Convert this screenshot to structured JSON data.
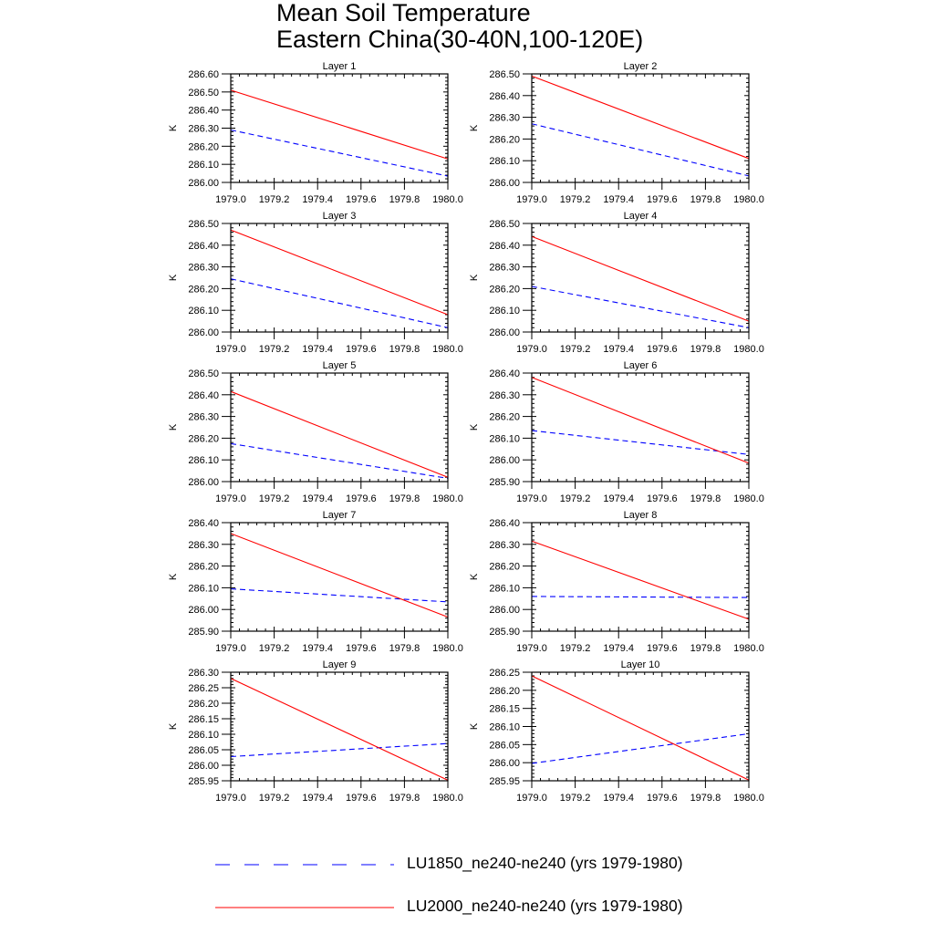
{
  "title": {
    "line1": "Mean Soil Temperature",
    "line2": "Eastern China(30-40N,100-120E)"
  },
  "legend": [
    {
      "label": "LU1850_ne240-ne240 (yrs 1979-1980)",
      "color": "#0000ff",
      "style": "dashed"
    },
    {
      "label": "LU2000_ne240-ne240 (yrs 1979-1980)",
      "color": "#ff0000",
      "style": "solid"
    }
  ],
  "chart_data": [
    {
      "type": "line",
      "title": "Layer 1",
      "ylabel": "K",
      "xlim": [
        1979.0,
        1980.0
      ],
      "xticks": [
        "1979.0",
        "1979.2",
        "1979.4",
        "1979.6",
        "1979.8",
        "1980.0"
      ],
      "ylim": [
        286.0,
        286.6
      ],
      "yticks": [
        "286.00",
        "286.10",
        "286.20",
        "286.30",
        "286.40",
        "286.50",
        "286.60"
      ],
      "series": [
        {
          "name": "LU1850_ne240-ne240 (yrs 1979-1980)",
          "x": [
            1979.0,
            1980.0
          ],
          "y": [
            286.29,
            286.035
          ]
        },
        {
          "name": "LU2000_ne240-ne240 (yrs 1979-1980)",
          "x": [
            1979.0,
            1980.0
          ],
          "y": [
            286.51,
            286.13
          ]
        }
      ]
    },
    {
      "type": "line",
      "title": "Layer 2",
      "ylabel": "K",
      "xlim": [
        1979.0,
        1980.0
      ],
      "xticks": [
        "1979.0",
        "1979.2",
        "1979.4",
        "1979.6",
        "1979.8",
        "1980.0"
      ],
      "ylim": [
        286.0,
        286.5
      ],
      "yticks": [
        "286.00",
        "286.10",
        "286.20",
        "286.30",
        "286.40",
        "286.50"
      ],
      "series": [
        {
          "name": "LU1850_ne240-ne240 (yrs 1979-1980)",
          "x": [
            1979.0,
            1980.0
          ],
          "y": [
            286.27,
            286.03
          ]
        },
        {
          "name": "LU2000_ne240-ne240 (yrs 1979-1980)",
          "x": [
            1979.0,
            1980.0
          ],
          "y": [
            286.49,
            286.11
          ]
        }
      ]
    },
    {
      "type": "line",
      "title": "Layer 3",
      "ylabel": "K",
      "xlim": [
        1979.0,
        1980.0
      ],
      "xticks": [
        "1979.0",
        "1979.2",
        "1979.4",
        "1979.6",
        "1979.8",
        "1980.0"
      ],
      "ylim": [
        286.0,
        286.5
      ],
      "yticks": [
        "286.00",
        "286.10",
        "286.20",
        "286.30",
        "286.40",
        "286.50"
      ],
      "series": [
        {
          "name": "LU1850_ne240-ne240 (yrs 1979-1980)",
          "x": [
            1979.0,
            1980.0
          ],
          "y": [
            286.245,
            286.02
          ]
        },
        {
          "name": "LU2000_ne240-ne240 (yrs 1979-1980)",
          "x": [
            1979.0,
            1980.0
          ],
          "y": [
            286.47,
            286.08
          ]
        }
      ]
    },
    {
      "type": "line",
      "title": "Layer 4",
      "ylabel": "K",
      "xlim": [
        1979.0,
        1980.0
      ],
      "xticks": [
        "1979.0",
        "1979.2",
        "1979.4",
        "1979.6",
        "1979.8",
        "1980.0"
      ],
      "ylim": [
        286.0,
        286.5
      ],
      "yticks": [
        "286.00",
        "286.10",
        "286.20",
        "286.30",
        "286.40",
        "286.50"
      ],
      "series": [
        {
          "name": "LU1850_ne240-ne240 (yrs 1979-1980)",
          "x": [
            1979.0,
            1980.0
          ],
          "y": [
            286.21,
            286.02
          ]
        },
        {
          "name": "LU2000_ne240-ne240 (yrs 1979-1980)",
          "x": [
            1979.0,
            1980.0
          ],
          "y": [
            286.44,
            286.05
          ]
        }
      ]
    },
    {
      "type": "line",
      "title": "Layer 5",
      "ylabel": "K",
      "xlim": [
        1979.0,
        1980.0
      ],
      "xticks": [
        "1979.0",
        "1979.2",
        "1979.4",
        "1979.6",
        "1979.8",
        "1980.0"
      ],
      "ylim": [
        286.0,
        286.5
      ],
      "yticks": [
        "286.00",
        "286.10",
        "286.20",
        "286.30",
        "286.40",
        "286.50"
      ],
      "series": [
        {
          "name": "LU1850_ne240-ne240 (yrs 1979-1980)",
          "x": [
            1979.0,
            1980.0
          ],
          "y": [
            286.175,
            286.015
          ]
        },
        {
          "name": "LU2000_ne240-ne240 (yrs 1979-1980)",
          "x": [
            1979.0,
            1980.0
          ],
          "y": [
            286.415,
            286.02
          ]
        }
      ]
    },
    {
      "type": "line",
      "title": "Layer 6",
      "ylabel": "K",
      "xlim": [
        1979.0,
        1980.0
      ],
      "xticks": [
        "1979.0",
        "1979.2",
        "1979.4",
        "1979.6",
        "1979.8",
        "1980.0"
      ],
      "ylim": [
        285.9,
        286.4
      ],
      "yticks": [
        "285.90",
        "286.00",
        "286.10",
        "286.20",
        "286.30",
        "286.40"
      ],
      "series": [
        {
          "name": "LU1850_ne240-ne240 (yrs 1979-1980)",
          "x": [
            1979.0,
            1980.0
          ],
          "y": [
            286.135,
            286.025
          ]
        },
        {
          "name": "LU2000_ne240-ne240 (yrs 1979-1980)",
          "x": [
            1979.0,
            1980.0
          ],
          "y": [
            286.38,
            285.985
          ]
        }
      ]
    },
    {
      "type": "line",
      "title": "Layer 7",
      "ylabel": "K",
      "xlim": [
        1979.0,
        1980.0
      ],
      "xticks": [
        "1979.0",
        "1979.2",
        "1979.4",
        "1979.6",
        "1979.8",
        "1980.0"
      ],
      "ylim": [
        285.9,
        286.4
      ],
      "yticks": [
        "285.90",
        "286.00",
        "286.10",
        "286.20",
        "286.30",
        "286.40"
      ],
      "series": [
        {
          "name": "LU1850_ne240-ne240 (yrs 1979-1980)",
          "x": [
            1979.0,
            1980.0
          ],
          "y": [
            286.095,
            286.035
          ]
        },
        {
          "name": "LU2000_ne240-ne240 (yrs 1979-1980)",
          "x": [
            1979.0,
            1980.0
          ],
          "y": [
            286.35,
            285.965
          ]
        }
      ]
    },
    {
      "type": "line",
      "title": "Layer 8",
      "ylabel": "K",
      "xlim": [
        1979.0,
        1980.0
      ],
      "xticks": [
        "1979.0",
        "1979.2",
        "1979.4",
        "1979.6",
        "1979.8",
        "1980.0"
      ],
      "ylim": [
        285.9,
        286.4
      ],
      "yticks": [
        "285.90",
        "286.00",
        "286.10",
        "286.20",
        "286.30",
        "286.40"
      ],
      "series": [
        {
          "name": "LU1850_ne240-ne240 (yrs 1979-1980)",
          "x": [
            1979.0,
            1980.0
          ],
          "y": [
            286.06,
            286.055
          ]
        },
        {
          "name": "LU2000_ne240-ne240 (yrs 1979-1980)",
          "x": [
            1979.0,
            1980.0
          ],
          "y": [
            286.315,
            285.955
          ]
        }
      ]
    },
    {
      "type": "line",
      "title": "Layer 9",
      "ylabel": "K",
      "xlim": [
        1979.0,
        1980.0
      ],
      "xticks": [
        "1979.0",
        "1979.2",
        "1979.4",
        "1979.6",
        "1979.8",
        "1980.0"
      ],
      "ylim": [
        285.95,
        286.3
      ],
      "yticks": [
        "285.95",
        "286.00",
        "286.05",
        "286.10",
        "286.15",
        "286.20",
        "286.25",
        "286.30"
      ],
      "series": [
        {
          "name": "LU1850_ne240-ne240 (yrs 1979-1980)",
          "x": [
            1979.0,
            1980.0
          ],
          "y": [
            286.028,
            286.07
          ]
        },
        {
          "name": "LU2000_ne240-ne240 (yrs 1979-1980)",
          "x": [
            1979.0,
            1980.0
          ],
          "y": [
            286.28,
            285.952
          ]
        }
      ]
    },
    {
      "type": "line",
      "title": "Layer 10",
      "ylabel": "K",
      "xlim": [
        1979.0,
        1980.0
      ],
      "xticks": [
        "1979.0",
        "1979.2",
        "1979.4",
        "1979.6",
        "1979.8",
        "1980.0"
      ],
      "ylim": [
        285.95,
        286.25
      ],
      "yticks": [
        "285.95",
        "286.00",
        "286.05",
        "286.10",
        "286.15",
        "286.20",
        "286.25"
      ],
      "series": [
        {
          "name": "LU1850_ne240-ne240 (yrs 1979-1980)",
          "x": [
            1979.0,
            1980.0
          ],
          "y": [
            285.998,
            286.08
          ]
        },
        {
          "name": "LU2000_ne240-ne240 (yrs 1979-1980)",
          "x": [
            1979.0,
            1980.0
          ],
          "y": [
            286.24,
            285.952
          ]
        }
      ]
    }
  ]
}
